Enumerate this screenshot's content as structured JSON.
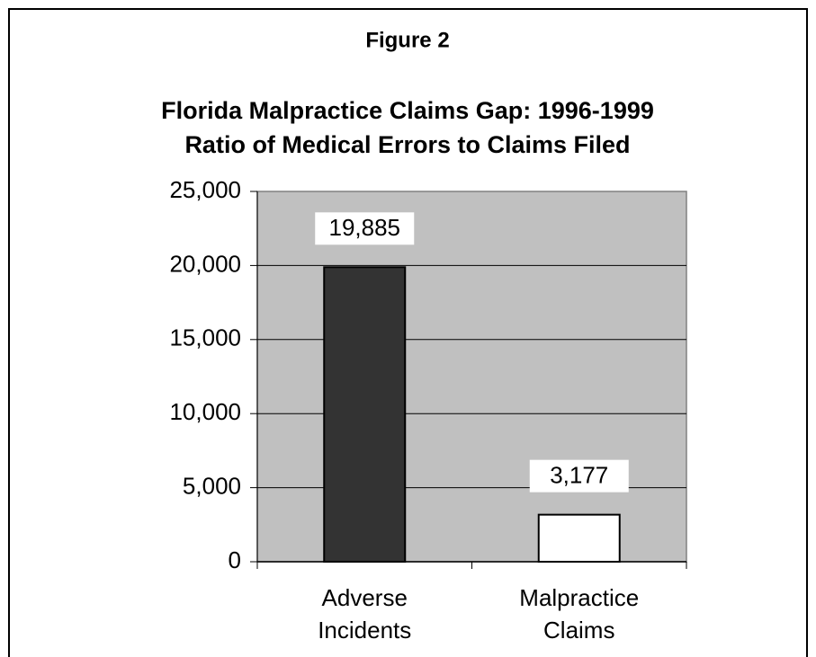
{
  "chart_data": {
    "type": "bar",
    "title": "Figure 2",
    "subtitle": [
      "Florida Malpractice Claims Gap: 1996-1999",
      "Ratio of Medical Errors to Claims Filed"
    ],
    "categories": [
      "Adverse Incidents",
      "Malpractice Claims"
    ],
    "values": [
      19885,
      3177
    ],
    "value_labels": [
      "19,885",
      "3,177"
    ],
    "colors": [
      "#333333",
      "#ffffff"
    ],
    "ylim": [
      0,
      25000
    ],
    "yticks": [
      0,
      {
        "value": 5000,
        "label": "5,000"
      },
      {
        "value": 10000,
        "label": "10,000"
      },
      {
        "value": 15000,
        "label": "15,000"
      },
      {
        "value": 20000,
        "label": "20,000"
      },
      {
        "value": 25000,
        "label": "25,000"
      }
    ],
    "grid": true
  }
}
